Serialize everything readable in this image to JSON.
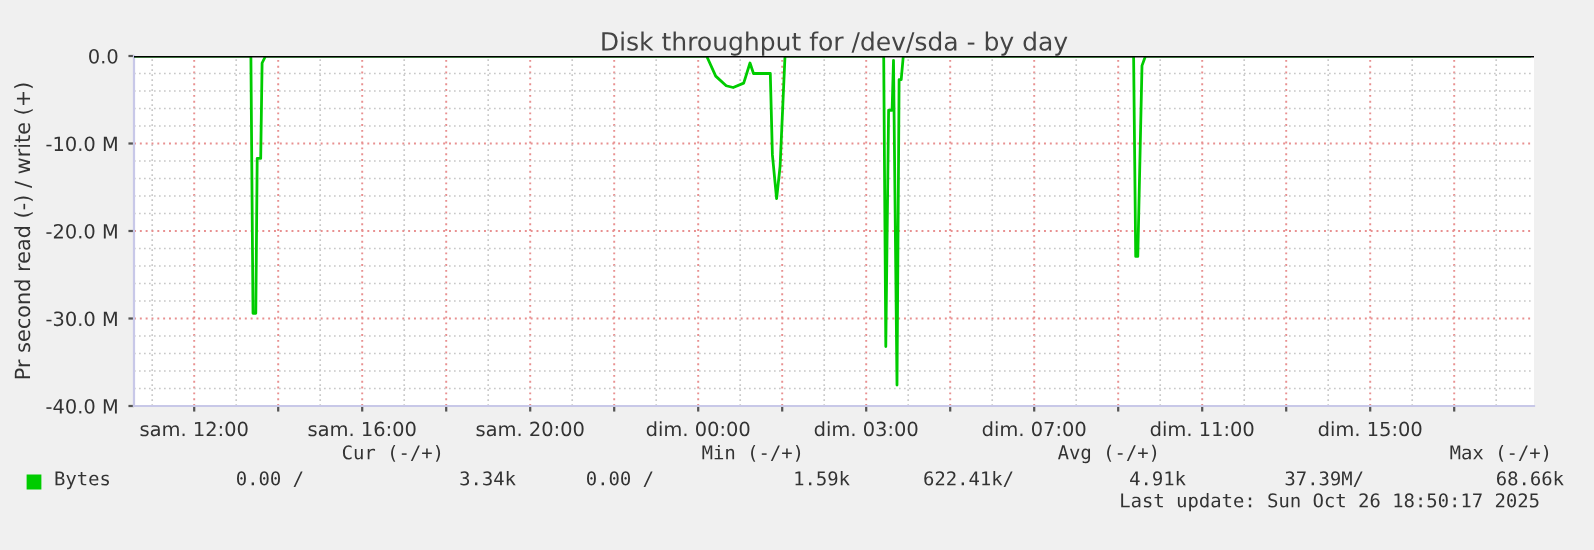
{
  "chart_data": {
    "type": "line",
    "title": "Disk throughput for /dev/sda - by day",
    "ylabel": "Pr second read (-) / write (+)",
    "xlim": [
      "2025-10-25T08:34",
      "2025-10-26T17:54"
    ],
    "xticks": [
      {
        "value": "2025-10-25T10:00",
        "label": "sam. 12:00"
      },
      {
        "value": "2025-10-25T12:00",
        "label": null
      },
      {
        "value": "2025-10-25T14:00",
        "label": "sam. 16:00"
      },
      {
        "value": "2025-10-25T16:00",
        "label": null
      },
      {
        "value": "2025-10-25T18:00",
        "label": "sam. 20:00"
      },
      {
        "value": "2025-10-25T20:00",
        "label": null
      },
      {
        "value": "2025-10-25T22:00",
        "label": "dim. 00:00"
      },
      {
        "value": "2025-10-26T00:00",
        "label": null
      },
      {
        "value": "2025-10-26T02:00",
        "label": "dim. 03:00"
      },
      {
        "value": "2025-10-26T04:00",
        "label": null
      },
      {
        "value": "2025-10-26T06:00",
        "label": "dim. 07:00"
      },
      {
        "value": "2025-10-26T08:00",
        "label": null
      },
      {
        "value": "2025-10-26T10:00",
        "label": "dim. 11:00"
      },
      {
        "value": "2025-10-26T12:00",
        "label": null
      },
      {
        "value": "2025-10-26T14:00",
        "label": "dim. 15:00"
      },
      {
        "value": "2025-10-26T16:00",
        "label": null
      }
    ],
    "ylim": [
      -40,
      0
    ],
    "yticks": [
      {
        "value": -40,
        "label": "-40.0 M"
      },
      {
        "value": -30,
        "label": "-30.0 M"
      },
      {
        "value": -20,
        "label": "-20.0 M"
      },
      {
        "value": -10,
        "label": "-10.0 M"
      },
      {
        "value": 0,
        "label": "0.0"
      }
    ],
    "grid": true,
    "legend": "bottom",
    "marker": "none",
    "line_style": "solid",
    "ref_lines": [
      {
        "axis": "y",
        "value": 0,
        "color": "#000000"
      }
    ],
    "series": [
      {
        "name": "Bytes",
        "color": "#00cc00",
        "x": [
          "2025-10-25T08:34",
          "2025-10-25T11:21",
          "2025-10-25T11:24",
          "2025-10-25T11:28",
          "2025-10-25T11:30",
          "2025-10-25T11:35",
          "2025-10-25T11:37",
          "2025-10-25T11:42",
          "2025-10-25T22:12",
          "2025-10-25T22:25",
          "2025-10-25T22:40",
          "2025-10-25T22:50",
          "2025-10-25T23:05",
          "2025-10-25T23:14",
          "2025-10-25T23:19",
          "2025-10-25T23:43",
          "2025-10-25T23:46",
          "2025-10-25T23:52",
          "2025-10-25T23:57",
          "2025-10-26T00:04",
          "2025-10-26T02:25",
          "2025-10-26T02:28",
          "2025-10-26T02:32",
          "2025-10-26T02:37",
          "2025-10-26T02:39",
          "2025-10-26T02:44",
          "2025-10-26T02:47",
          "2025-10-26T02:50",
          "2025-10-26T02:53",
          "2025-10-26T08:22",
          "2025-10-26T08:25",
          "2025-10-26T08:28",
          "2025-10-26T08:34",
          "2025-10-26T08:39",
          "2025-10-26T17:48"
        ],
        "values": [
          0,
          0,
          -29.4,
          -29.4,
          -11.7,
          -11.7,
          -0.8,
          0,
          0,
          -2.3,
          -3.4,
          -3.6,
          -3.1,
          -0.8,
          -2.0,
          -2.0,
          -11.3,
          -16.3,
          -12.6,
          0,
          0,
          -33.2,
          -6.2,
          -6.2,
          -0.5,
          -37.6,
          -2.7,
          -2.7,
          0,
          0,
          -22.9,
          -22.9,
          -1.1,
          0,
          0
        ]
      }
    ],
    "annotations": [
      "Cur (-/+)",
      "Min (-/+)",
      "Avg (-/+)",
      "Max (-/+)",
      "0.00 /",
      "3.34k",
      "0.00 /",
      "1.59k",
      "622.41k/",
      "4.91k",
      "37.39M/",
      "68.66k",
      "Last update: Sun Oct 26 18:50:17 2025"
    ]
  }
}
